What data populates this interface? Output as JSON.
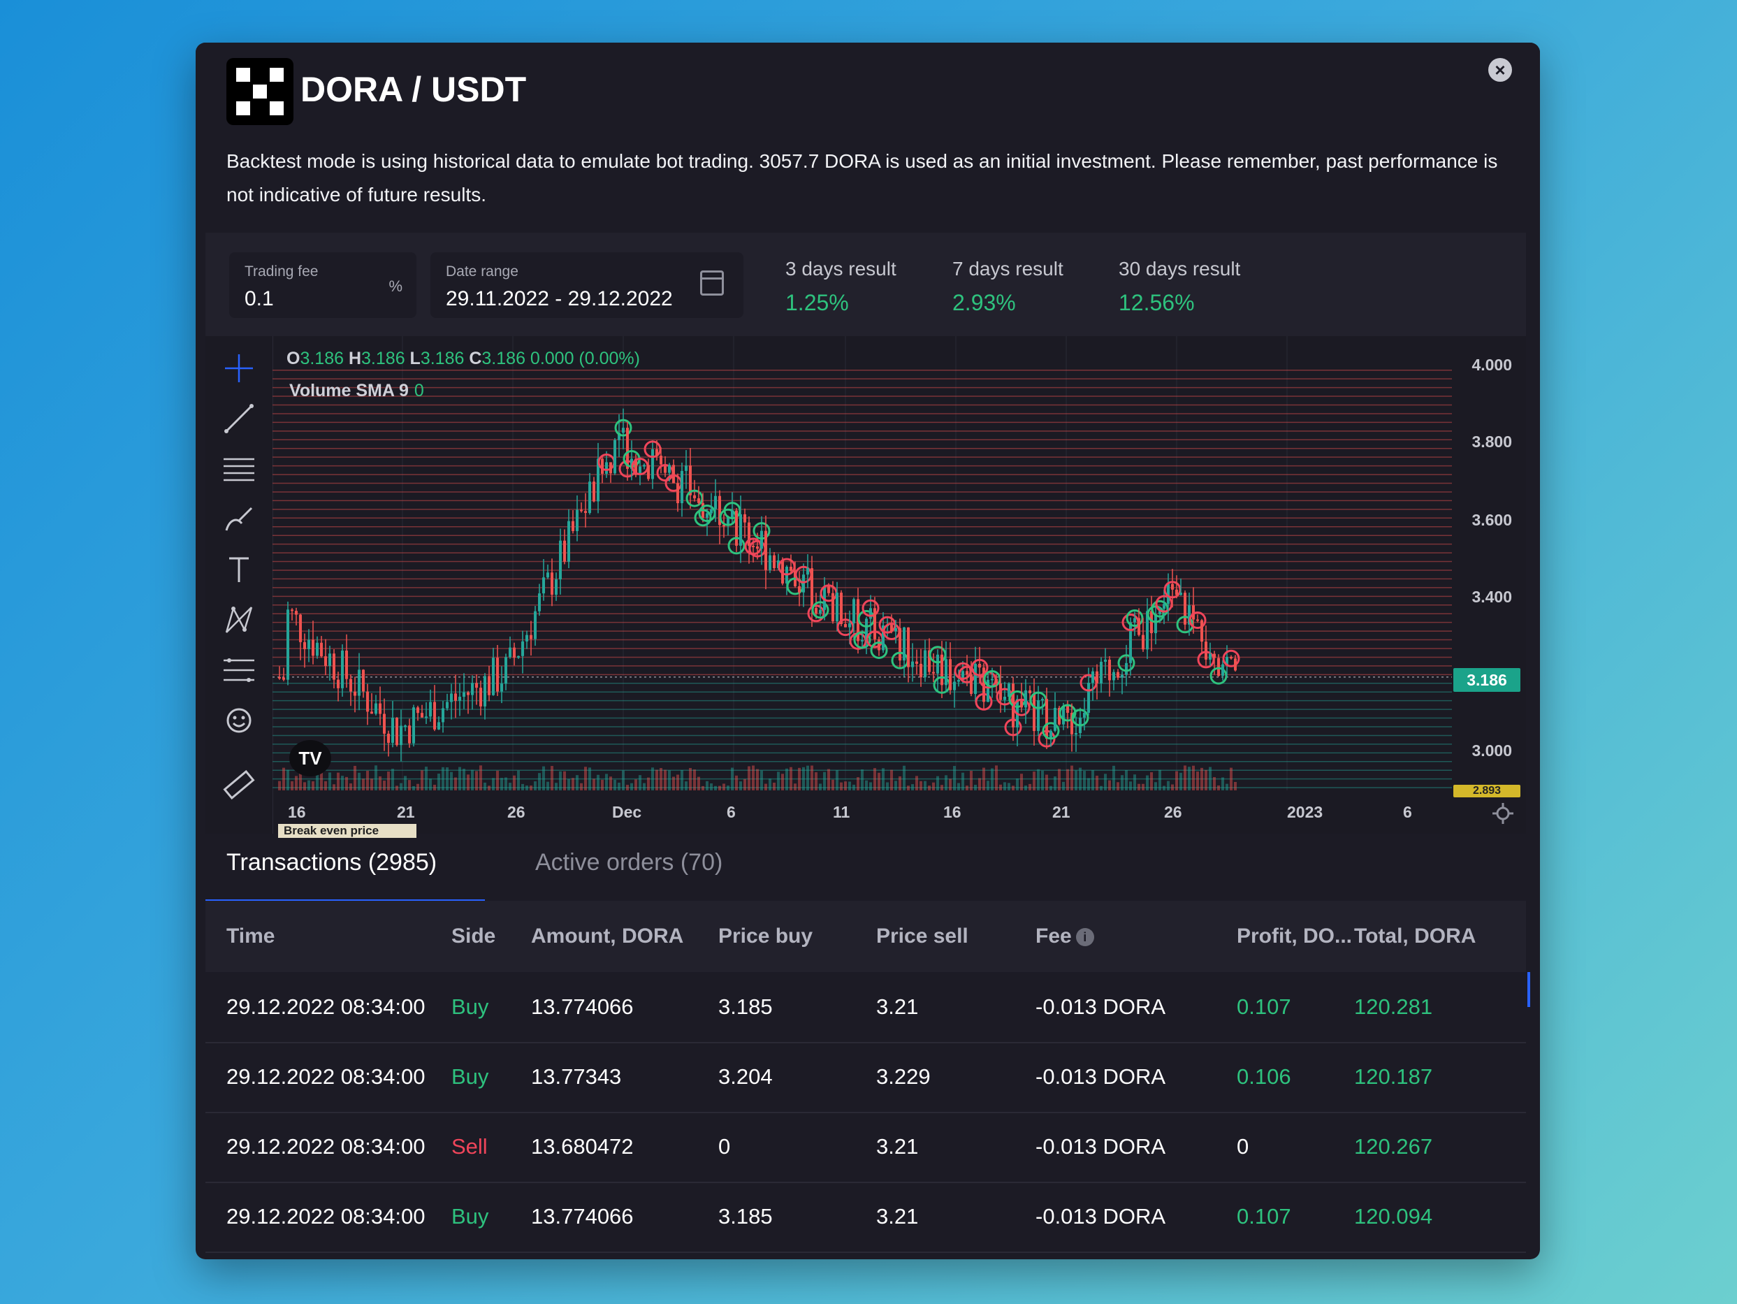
{
  "window": {
    "pair_title": "DORA / USDT",
    "description": "Backtest mode is using historical data to emulate bot trading. 3057.7 DORA is used as an initial investment. Please remember, past performance is not indicative of future results.",
    "close_icon": "close-icon"
  },
  "controls": {
    "trading_fee": {
      "label": "Trading fee",
      "value": "0.1",
      "suffix": "%"
    },
    "date_range": {
      "label": "Date range",
      "value": "29.11.2022 - 29.12.2022",
      "icon": "calendar-icon"
    },
    "results": [
      {
        "label": "3 days result",
        "value": "1.25%"
      },
      {
        "label": "7 days result",
        "value": "2.93%"
      },
      {
        "label": "30 days result",
        "value": "12.56%"
      }
    ]
  },
  "chart": {
    "ohlc": {
      "o_label": "O",
      "o": "3.186",
      "h_label": "H",
      "h": "3.186",
      "l_label": "L",
      "l": "3.186",
      "c_label": "C",
      "c": "3.186",
      "change": "0.000 (0.00%)"
    },
    "volume_label": "Volume SMA 9",
    "volume_value": "0",
    "y_ticks": [
      "4.000",
      "3.800",
      "3.600",
      "3.400",
      "3.186",
      "3.000",
      "2.893"
    ],
    "x_ticks": [
      "16",
      "21",
      "26",
      "Dec",
      "6",
      "11",
      "16",
      "21",
      "26",
      "2023",
      "6"
    ],
    "current_price": "3.186",
    "break_even_label": "Break even price",
    "tv_logo": "TV",
    "colors": {
      "up": "#26a69a",
      "down": "#ef5350",
      "grid_sell": "#ef5350",
      "grid_buy": "#26a69a"
    },
    "tools": [
      "crosshair-icon",
      "trend-line-icon",
      "horizontal-lines-icon",
      "brush-icon",
      "text-icon",
      "pattern-icon",
      "fib-icon",
      "emoji-icon",
      "ruler-icon"
    ]
  },
  "chart_data": {
    "type": "candlestick",
    "series": [
      {
        "name": "DORA/USDT",
        "x": [
          "Nov 16",
          "Nov 21",
          "Nov 26",
          "Dec 1",
          "Dec 6",
          "Dec 11",
          "Dec 16",
          "Dec 21",
          "Dec 26",
          "Dec 29"
        ],
        "close": [
          3.35,
          3.05,
          3.2,
          3.8,
          3.6,
          3.35,
          3.2,
          3.05,
          3.4,
          3.186
        ]
      }
    ],
    "ylim": [
      2.893,
      4.05
    ],
    "last_price": 3.186
  },
  "tabs": [
    {
      "label": "Transactions (2985)"
    },
    {
      "label": "Active orders (70)"
    }
  ],
  "table": {
    "headers": [
      "Time",
      "Side",
      "Amount, DORA",
      "Price buy",
      "Price sell",
      "Fee",
      "Profit, DO...",
      "Total, DORA"
    ],
    "rows": [
      {
        "time": "29.12.2022 08:34:00",
        "side": "Buy",
        "amount": "13.774066",
        "price_buy": "3.185",
        "price_sell": "3.21",
        "fee": "-0.013 DORA",
        "profit": "0.107",
        "total": "120.281"
      },
      {
        "time": "29.12.2022 08:34:00",
        "side": "Buy",
        "amount": "13.77343",
        "price_buy": "3.204",
        "price_sell": "3.229",
        "fee": "-0.013 DORA",
        "profit": "0.106",
        "total": "120.187"
      },
      {
        "time": "29.12.2022 08:34:00",
        "side": "Sell",
        "amount": "13.680472",
        "price_buy": "0",
        "price_sell": "3.21",
        "fee": "-0.013 DORA",
        "profit": "0",
        "total": "120.267"
      },
      {
        "time": "29.12.2022 08:34:00",
        "side": "Buy",
        "amount": "13.774066",
        "price_buy": "3.185",
        "price_sell": "3.21",
        "fee": "-0.013 DORA",
        "profit": "0.107",
        "total": "120.094"
      }
    ]
  }
}
